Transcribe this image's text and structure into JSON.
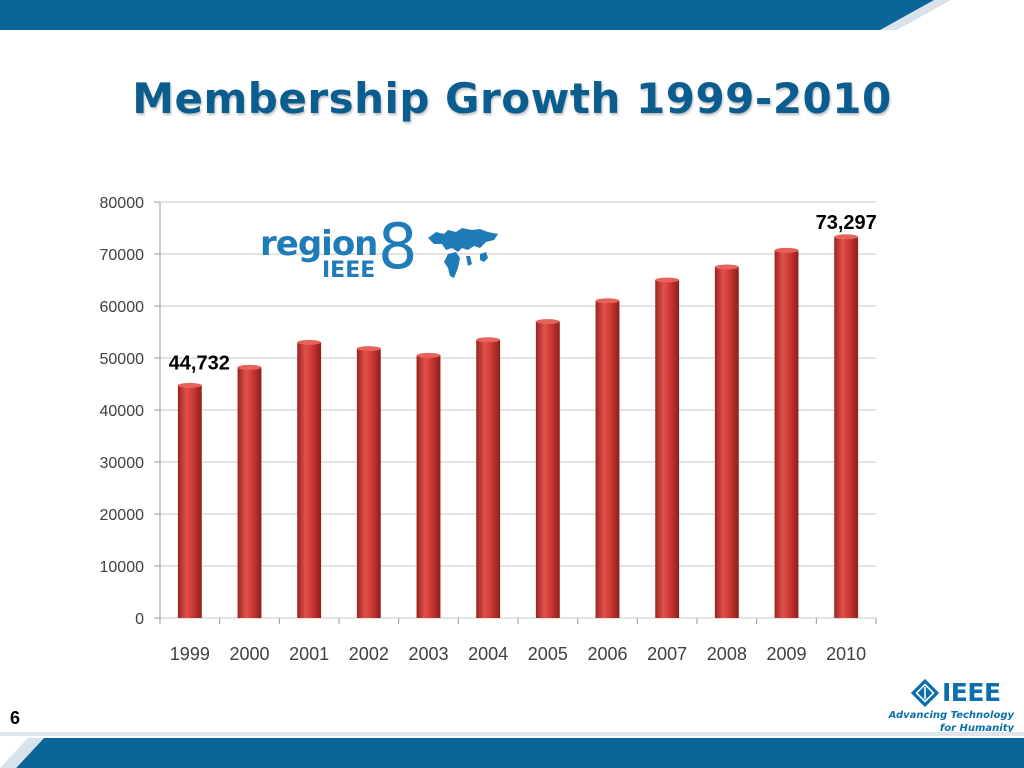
{
  "slide": {
    "title": "Membership Growth 1999-2010",
    "page_number": "6"
  },
  "logo": {
    "word": "region",
    "sub": "IEEE",
    "number": "8"
  },
  "brand": {
    "name": "IEEE",
    "tagline_1": "Advancing Technology",
    "tagline_2": "for Humanity"
  },
  "colors": {
    "title": "#0b5d8f",
    "top_bar": "#0b6497",
    "bar_fill": "#d13a35",
    "bar_dark": "#9b2320",
    "gridline": "#c9c9c9",
    "logo": "#1f7cb8"
  },
  "chart_data": {
    "type": "bar",
    "categories": [
      "1999",
      "2000",
      "2001",
      "2002",
      "2003",
      "2004",
      "2005",
      "2006",
      "2007",
      "2008",
      "2009",
      "2010"
    ],
    "values": [
      44732,
      48200,
      53000,
      51800,
      50500,
      53500,
      57000,
      61000,
      65000,
      67500,
      70700,
      73297
    ],
    "ylim": [
      0,
      80000
    ],
    "yticks": [
      "0",
      "10000",
      "20000",
      "30000",
      "40000",
      "50000",
      "60000",
      "70000",
      "80000"
    ],
    "grid": true,
    "annotations": [
      {
        "category": "1999",
        "label": "44,732"
      },
      {
        "category": "2010",
        "label": "73,297"
      }
    ]
  }
}
